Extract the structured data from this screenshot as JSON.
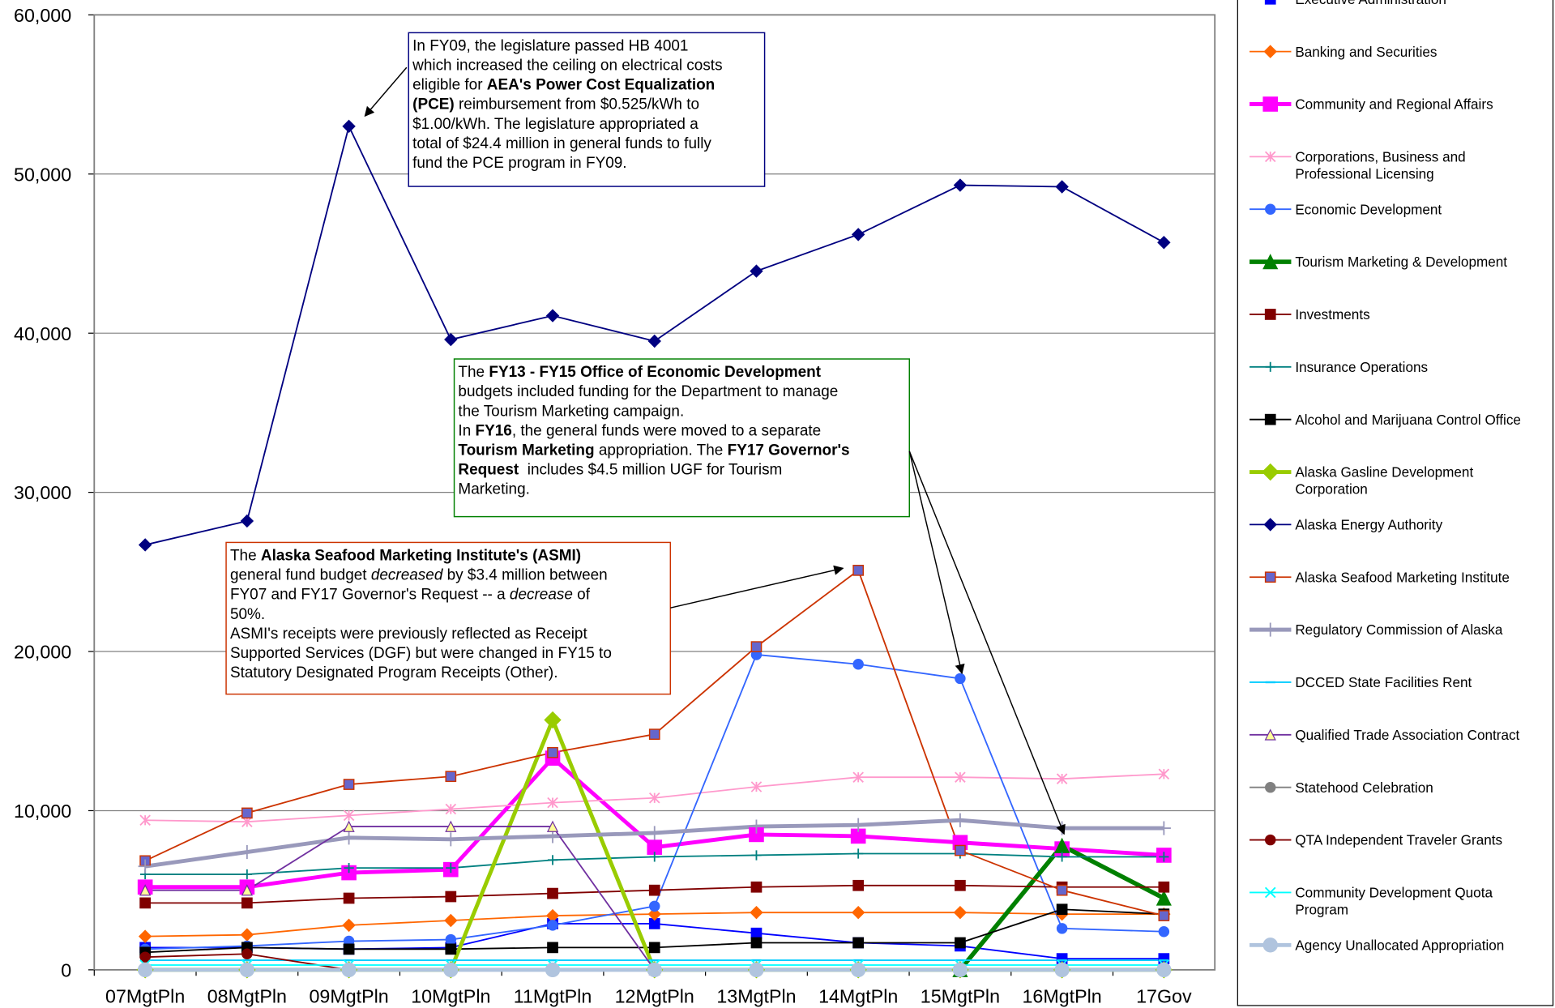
{
  "chart_data": {
    "type": "line",
    "categories": [
      "07MgtPln",
      "08MgtPln",
      "09MgtPln",
      "10MgtPln",
      "11MgtPln",
      "12MgtPln",
      "13MgtPln",
      "14MgtPln",
      "15MgtPln",
      "16MgtPln",
      "17Gov"
    ],
    "ylim": [
      0,
      60000
    ],
    "yticks": [
      0,
      {
        "value": 10000,
        "label": "10,000"
      },
      {
        "value": 20000,
        "label": "20,000"
      },
      {
        "value": 30000,
        "label": "30,000"
      },
      {
        "value": 40000,
        "label": "40,000"
      },
      {
        "value": 50000,
        "label": "50,000"
      },
      {
        "value": 60000,
        "label": "60,000"
      }
    ],
    "grid": true,
    "legend": "right",
    "series": [
      {
        "name": "Executive Administration",
        "color": "#0000ff",
        "marker": "square",
        "width": 1.5,
        "values": [
          1400,
          1400,
          1300,
          1400,
          2900,
          2900,
          2300,
          1700,
          1500,
          700,
          700
        ]
      },
      {
        "name": "Banking and Securities",
        "color": "#ff6600",
        "marker": "diamond",
        "width": 1.5,
        "values": [
          2100,
          2200,
          2800,
          3100,
          3400,
          3500,
          3600,
          3600,
          3600,
          3500,
          3500
        ]
      },
      {
        "name": "Community and Regional Affairs",
        "color": "#ff00ff",
        "marker": "square",
        "width": 4,
        "values": [
          5200,
          5200,
          6100,
          6300,
          13300,
          7700,
          8500,
          8400,
          8000,
          7600,
          7200
        ]
      },
      {
        "name": "Corporations, Business and Professional Licensing",
        "color": "#ff99cc",
        "marker": "star",
        "width": 1.5,
        "values": [
          9400,
          9300,
          9700,
          10100,
          10500,
          10800,
          11500,
          12100,
          12100,
          12000,
          12300
        ]
      },
      {
        "name": "Economic Development",
        "color": "#3366ff",
        "marker": "circle",
        "width": 1.5,
        "values": [
          1300,
          1500,
          1800,
          1900,
          2800,
          4000,
          19800,
          19200,
          18300,
          2600,
          2400
        ]
      },
      {
        "name": "Tourism Marketing & Development",
        "color": "#008000",
        "marker": "triangle",
        "width": 4.5,
        "values": [
          null,
          null,
          null,
          null,
          null,
          null,
          null,
          null,
          0,
          7800,
          4500
        ]
      },
      {
        "name": "Investments",
        "color": "#800000",
        "marker": "square",
        "width": 1.5,
        "values": [
          4200,
          4200,
          4500,
          4600,
          4800,
          5000,
          5200,
          5300,
          5300,
          5200,
          5200
        ]
      },
      {
        "name": "Insurance Operations",
        "color": "#008080",
        "marker": "plus",
        "width": 1.5,
        "values": [
          6000,
          6000,
          6400,
          6400,
          6900,
          7100,
          7200,
          7300,
          7300,
          7100,
          7100
        ]
      },
      {
        "name": "Alcohol and Marijuana Control Office",
        "color": "#000000",
        "marker": "square",
        "width": 1.5,
        "values": [
          1100,
          1400,
          1300,
          1300,
          1400,
          1400,
          1700,
          1700,
          1700,
          3800,
          3500
        ]
      },
      {
        "name": "Alaska Gasline Development Corporation",
        "color": "#99cc00",
        "marker": "diamond",
        "width": 4,
        "values": [
          0,
          0,
          0,
          0,
          15700,
          0,
          0,
          0,
          0,
          0,
          0
        ]
      },
      {
        "name": "Alaska Energy Authority",
        "color": "#000080",
        "marker": "diamond",
        "width": 1.5,
        "values": [
          26700,
          28200,
          53000,
          39600,
          41100,
          39500,
          43900,
          46200,
          49300,
          49200,
          45700
        ]
      },
      {
        "name": "Alaska Seafood Marketing Institute",
        "color": "#cc3300",
        "marker": "square",
        "marker_color": "#6666cc",
        "width": 1.5,
        "values": [
          6850,
          9850,
          11650,
          12150,
          13650,
          14800,
          20300,
          25100,
          7500,
          5000,
          3400
        ]
      },
      {
        "name": "Regulatory Commission of Alaska",
        "color": "#9999bb",
        "marker": "plus",
        "width": 4,
        "values": [
          6500,
          7400,
          8300,
          8200,
          8400,
          8600,
          9000,
          9100,
          9400,
          8900,
          8900
        ]
      },
      {
        "name": "DCCED State Facilities Rent",
        "color": "#00ccff",
        "marker": "dash",
        "width": 1.5,
        "values": [
          600,
          600,
          600,
          600,
          600,
          600,
          600,
          600,
          600,
          600,
          600
        ]
      },
      {
        "name": "Qualified Trade Association Contract",
        "color": "#7030a0",
        "marker": "triangle",
        "marker_color": "#ffff99",
        "width": 1.5,
        "values": [
          5000,
          5000,
          9000,
          9000,
          9000,
          0,
          null,
          null,
          null,
          null,
          null
        ]
      },
      {
        "name": "Statehood Celebration",
        "color": "#808080",
        "marker": "circle",
        "width": 1.5,
        "values": [
          0,
          0,
          0,
          0,
          0,
          0,
          0,
          0,
          0,
          0,
          0
        ]
      },
      {
        "name": "QTA Independent Traveler Grants",
        "color": "#800000",
        "marker": "circle",
        "width": 1.5,
        "values": [
          800,
          1000,
          0,
          null,
          null,
          null,
          null,
          null,
          null,
          null,
          null
        ]
      },
      {
        "name": "Community Development Quota Program",
        "color": "#00ffff",
        "marker": "x",
        "width": 1.5,
        "values": [
          300,
          300,
          300,
          300,
          300,
          300,
          300,
          300,
          300,
          300,
          300
        ]
      },
      {
        "name": "Agency Unallocated Appropriation",
        "color": "#b0c4de",
        "marker": "circle",
        "width": 4,
        "values": [
          0,
          0,
          0,
          0,
          0,
          0,
          0,
          0,
          0,
          0,
          0
        ]
      }
    ],
    "annotations": [
      {
        "border": "#000080",
        "lines": [
          [
            {
              "text": "In FY09, the legislature passed HB 4001"
            }
          ],
          [
            {
              "text": "which increased the ceiling on electrical costs"
            }
          ],
          [
            {
              "text": "eligible for "
            },
            {
              "text": "AEA's Power Cost Equalization",
              "bold": true
            }
          ],
          [
            {
              "text": "(PCE)",
              "bold": true
            },
            {
              "text": " reimbursement from $0.525/kWh to"
            }
          ],
          [
            {
              "text": "$1.00/kWh. The legislature appropriated a"
            }
          ],
          [
            {
              "text": "total of $24.4 million in general funds to fully"
            }
          ],
          [
            {
              "text": "fund the PCE program in FY09."
            }
          ]
        ]
      },
      {
        "border": "#008000",
        "lines": [
          [
            {
              "text": "The "
            },
            {
              "text": "FY13 - FY15 Office of Economic Development",
              "bold": true
            }
          ],
          [
            {
              "text": "budgets included funding for the Department to manage"
            }
          ],
          [
            {
              "text": "the Tourism Marketing campaign."
            }
          ],
          [
            {
              "text": "In "
            },
            {
              "text": "FY16",
              "bold": true
            },
            {
              "text": ", the general funds were moved to a separate"
            }
          ],
          [
            {
              "text": "Tourism Marketing",
              "bold": true
            },
            {
              "text": " appropriation. The "
            },
            {
              "text": "FY17 Governor's",
              "bold": true
            }
          ],
          [
            {
              "text": "Request",
              "bold": true
            },
            {
              "text": "  includes $4.5 million UGF for Tourism"
            }
          ],
          [
            {
              "text": "Marketing."
            }
          ]
        ]
      },
      {
        "border": "#cc3300",
        "lines": [
          [
            {
              "text": "The "
            },
            {
              "text": "Alaska Seafood Marketing Institute's (ASMI)",
              "bold": true
            }
          ],
          [
            {
              "text": "general fund budget "
            },
            {
              "text": "decreased",
              "italic": true
            },
            {
              "text": " by $3.4 million between"
            }
          ],
          [
            {
              "text": "FY07 and FY17 Governor's Request -- a "
            },
            {
              "text": "decrease",
              "italic": true
            },
            {
              "text": " of"
            }
          ],
          [
            {
              "text": "50%."
            }
          ],
          [
            {
              "text": "ASMI's receipts were previously reflected as Receipt"
            }
          ],
          [
            {
              "text": "Supported Services (DGF) but were changed in FY15 to"
            }
          ],
          [
            {
              "text": "Statutory Designated Program Receipts (Other)."
            }
          ]
        ]
      }
    ]
  }
}
